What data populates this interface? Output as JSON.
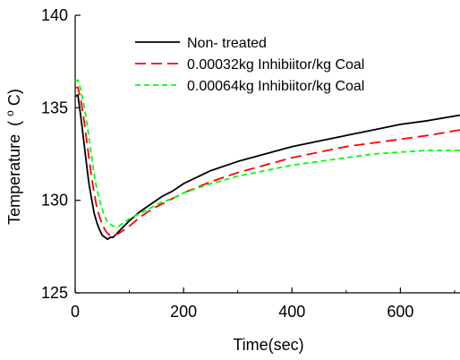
{
  "chart_data": {
    "type": "line",
    "title": "",
    "xlabel": "Time(sec)",
    "ylabel": "Temperature",
    "ylabel_unit": "(°C)",
    "ylabel_unit_sup": "o",
    "ylabel_unit_after": "C)",
    "ylabel_unit_before": "(",
    "xlim": [
      0,
      710
    ],
    "ylim": [
      125,
      140
    ],
    "x_ticks": [
      0,
      200,
      400,
      600
    ],
    "y_ticks": [
      125,
      130,
      135,
      140
    ],
    "grid": false,
    "legend_position": "top-right",
    "series": [
      {
        "name": "Non- treated",
        "color": "#000000",
        "dash": "solid",
        "x": [
          0,
          5,
          10,
          15,
          20,
          25,
          30,
          35,
          40,
          45,
          50,
          55,
          60,
          65,
          70,
          80,
          90,
          100,
          120,
          140,
          160,
          180,
          200,
          250,
          300,
          350,
          400,
          450,
          500,
          550,
          600,
          650,
          710
        ],
        "y": [
          135.6,
          135.7,
          134.6,
          133.4,
          132.2,
          131.0,
          130.1,
          129.3,
          128.8,
          128.4,
          128.1,
          128.0,
          127.9,
          128.0,
          128.0,
          128.3,
          128.6,
          128.9,
          129.4,
          129.8,
          130.2,
          130.5,
          130.9,
          131.6,
          132.1,
          132.5,
          132.9,
          133.2,
          133.5,
          133.8,
          134.1,
          134.3,
          134.6
        ]
      },
      {
        "name": "0.00032kg Inhibiitor/kg Coal",
        "color": "#ff0000",
        "dash": "long",
        "x": [
          0,
          5,
          10,
          15,
          20,
          25,
          30,
          35,
          40,
          45,
          50,
          55,
          60,
          65,
          70,
          80,
          90,
          100,
          120,
          140,
          160,
          180,
          200,
          250,
          300,
          350,
          400,
          450,
          500,
          550,
          600,
          650,
          710
        ],
        "y": [
          136.1,
          136.1,
          135.5,
          134.6,
          133.5,
          132.4,
          131.3,
          130.4,
          129.6,
          129.1,
          128.7,
          128.4,
          128.2,
          128.1,
          128.1,
          128.2,
          128.4,
          128.6,
          129.1,
          129.5,
          129.8,
          130.1,
          130.4,
          131.0,
          131.5,
          131.9,
          132.3,
          132.6,
          132.9,
          133.1,
          133.3,
          133.5,
          133.8
        ]
      },
      {
        "name": "0.00064kg Inhibiitor/kg Coal",
        "color": "#00ff00",
        "dash": "short",
        "x": [
          0,
          5,
          10,
          15,
          20,
          25,
          30,
          35,
          40,
          45,
          50,
          55,
          60,
          65,
          70,
          80,
          90,
          100,
          120,
          140,
          160,
          180,
          200,
          250,
          300,
          350,
          400,
          450,
          500,
          550,
          600,
          650,
          710
        ],
        "y": [
          136.4,
          136.5,
          136.0,
          135.3,
          134.5,
          133.5,
          132.4,
          131.4,
          130.6,
          130.0,
          129.5,
          129.1,
          128.8,
          128.7,
          128.6,
          128.6,
          128.8,
          129.0,
          129.3,
          129.6,
          129.9,
          130.1,
          130.4,
          130.9,
          131.3,
          131.6,
          131.9,
          132.1,
          132.3,
          132.5,
          132.6,
          132.7,
          132.7
        ]
      }
    ]
  }
}
